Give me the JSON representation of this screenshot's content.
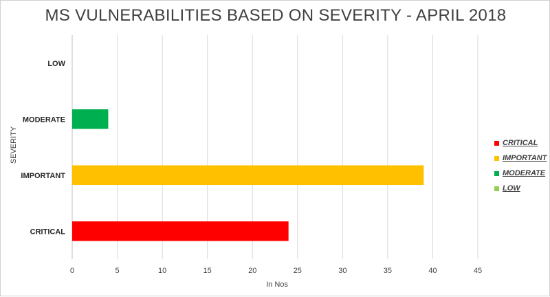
{
  "chart_data": {
    "type": "bar",
    "orientation": "horizontal",
    "title": "MS VULNERABILITIES BASED ON SEVERITY - APRIL 2018",
    "xlabel": "In Nos",
    "ylabel": "SEVERITY",
    "xlim": [
      0,
      45
    ],
    "x_ticks": [
      "0",
      "5",
      "10",
      "15",
      "20",
      "25",
      "30",
      "35",
      "40",
      "45"
    ],
    "grid": "vertical",
    "legend_position": "right",
    "categories": [
      "LOW",
      "MODERATE",
      "IMPORTANT",
      "CRITICAL"
    ],
    "values": [
      0,
      4,
      39,
      24
    ],
    "colors": [
      "#92d050",
      "#00b050",
      "#ffc000",
      "#ff0000"
    ]
  },
  "legend": [
    {
      "label": "CRITICAL",
      "color": "#ff0000"
    },
    {
      "label": "IMPORTANT",
      "color": "#ffc000"
    },
    {
      "label": "MODERATE",
      "color": "#00b050"
    },
    {
      "label": "LOW",
      "color": "#92d050"
    }
  ]
}
